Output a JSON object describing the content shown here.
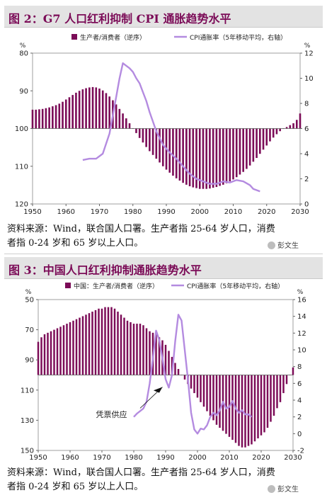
{
  "figures": [
    {
      "title": "图 2：G7 人口红利抑制 CPI 通胀趋势水平",
      "source_line1": "资料来源：Wind，联合国人口署。生产者指 25-64 岁人口，消费",
      "source_line2": "者指 0-24 岁和 65 岁以上人口。",
      "watermark": "彭文生"
    },
    {
      "title": "图 3：中国人口红利抑制通胀趋势水平",
      "source_line1": "资料来源：Wind，联合国人口署。生产者指 25-64 岁人口，消费",
      "source_line2": "者指 0-24 岁和 65 岁以上人口。",
      "watermark": "彭文生"
    }
  ],
  "colors": {
    "bar": "#7b0b57",
    "line": "#b48be0",
    "title": "#7b0b57"
  },
  "chart_data": [
    {
      "type": "bar",
      "left_axis_unit": "%",
      "right_axis_unit": "%",
      "legend": [
        "生产者/消费者（逆序）",
        "CPI通胀率（5年移动平均，右轴）"
      ],
      "xlim": [
        1950,
        2030
      ],
      "xticks": [
        1950,
        1960,
        1970,
        1980,
        1990,
        2000,
        2010,
        2020,
        2030
      ],
      "ylim_left": [
        80,
        120
      ],
      "yticks_left": [
        80,
        90,
        100,
        110,
        120
      ],
      "left_reversed": true,
      "baseline_left": 100,
      "ylim_right": [
        0,
        12
      ],
      "yticks_right": [
        0,
        2,
        4,
        6,
        8,
        10,
        12
      ],
      "bar_series": {
        "name": "生产者/消费者（逆序）",
        "x": [
          1950,
          1951,
          1952,
          1953,
          1954,
          1955,
          1956,
          1957,
          1958,
          1959,
          1960,
          1961,
          1962,
          1963,
          1964,
          1965,
          1966,
          1967,
          1968,
          1969,
          1970,
          1971,
          1972,
          1973,
          1974,
          1975,
          1976,
          1977,
          1978,
          1979,
          1980,
          1981,
          1982,
          1983,
          1984,
          1985,
          1986,
          1987,
          1988,
          1989,
          1990,
          1991,
          1992,
          1993,
          1994,
          1995,
          1996,
          1997,
          1998,
          1999,
          2000,
          2001,
          2002,
          2003,
          2004,
          2005,
          2006,
          2007,
          2008,
          2009,
          2010,
          2011,
          2012,
          2013,
          2014,
          2015,
          2016,
          2017,
          2018,
          2019,
          2020,
          2021,
          2022,
          2023,
          2024,
          2025,
          2026,
          2027,
          2028,
          2029,
          2030
        ],
        "values": [
          95.0,
          95.0,
          94.9,
          94.8,
          94.6,
          94.4,
          94.1,
          93.8,
          93.4,
          92.9,
          92.3,
          91.7,
          91.1,
          90.5,
          90.0,
          89.6,
          89.3,
          89.1,
          89.0,
          89.1,
          89.4,
          89.9,
          90.6,
          91.5,
          92.5,
          93.6,
          94.8,
          96.0,
          97.3,
          98.6,
          99.9,
          101.2,
          102.5,
          103.7,
          104.9,
          106.0,
          107.0,
          108.0,
          109.0,
          110.0,
          110.9,
          111.7,
          112.5,
          113.2,
          113.8,
          114.4,
          114.9,
          115.3,
          115.6,
          115.8,
          116.0,
          116.0,
          116.0,
          115.9,
          115.7,
          115.5,
          115.2,
          114.9,
          114.5,
          114.0,
          113.5,
          112.9,
          112.2,
          111.5,
          110.7,
          109.8,
          108.8,
          107.8,
          106.7,
          105.6,
          104.5,
          103.4,
          102.4,
          101.5,
          100.7,
          100.1,
          99.6,
          99.1,
          98.6,
          97.7,
          96.0
        ]
      },
      "line_series": {
        "name": "CPI通胀率（5年移动平均，右轴）",
        "x": [
          1965,
          1967,
          1969,
          1971,
          1973,
          1975,
          1976,
          1977,
          1978,
          1979,
          1980,
          1981,
          1982,
          1983,
          1984,
          1985,
          1987,
          1989,
          1991,
          1993,
          1995,
          1997,
          1999,
          2001,
          2003,
          2005,
          2007,
          2009,
          2011,
          2013,
          2015,
          2016,
          2017,
          2018
        ],
        "values": [
          3.5,
          3.6,
          3.6,
          4.0,
          5.6,
          8.5,
          10.0,
          11.2,
          11.0,
          10.8,
          10.5,
          10.0,
          9.6,
          8.9,
          8.2,
          7.3,
          5.8,
          4.7,
          4.1,
          3.6,
          3.0,
          2.4,
          2.0,
          1.8,
          1.6,
          1.6,
          1.8,
          1.7,
          1.9,
          1.8,
          1.5,
          1.2,
          1.1,
          1.0
        ]
      }
    },
    {
      "type": "bar",
      "left_axis_unit": "%",
      "right_axis_unit": "%",
      "legend": [
        "中国：生产者/消费者（逆序）",
        "CPI通胀率（5年移动平均，右轴）"
      ],
      "annotation": "凭票供应",
      "xlim": [
        1950,
        2030
      ],
      "xticks": [
        1950,
        1960,
        1970,
        1980,
        1990,
        2000,
        2010,
        2020,
        2030
      ],
      "ylim_left": [
        50,
        150
      ],
      "yticks_left": [
        50,
        70,
        90,
        110,
        130,
        150
      ],
      "left_reversed": true,
      "baseline_left": 100,
      "ylim_right": [
        -2,
        16
      ],
      "yticks_right": [
        -2,
        0,
        2,
        4,
        6,
        8,
        10,
        12,
        14,
        16
      ],
      "bar_series": {
        "name": "中国：生产者/消费者（逆序）",
        "x": [
          1950,
          1951,
          1952,
          1953,
          1954,
          1955,
          1956,
          1957,
          1958,
          1959,
          1960,
          1961,
          1962,
          1963,
          1964,
          1965,
          1966,
          1967,
          1968,
          1969,
          1970,
          1971,
          1972,
          1973,
          1974,
          1975,
          1976,
          1977,
          1978,
          1979,
          1980,
          1981,
          1982,
          1983,
          1984,
          1985,
          1986,
          1987,
          1988,
          1989,
          1990,
          1991,
          1992,
          1993,
          1994,
          1995,
          1996,
          1997,
          1998,
          1999,
          2000,
          2001,
          2002,
          2003,
          2004,
          2005,
          2006,
          2007,
          2008,
          2009,
          2010,
          2011,
          2012,
          2013,
          2014,
          2015,
          2016,
          2017,
          2018,
          2019,
          2020,
          2021,
          2022,
          2023,
          2024,
          2025,
          2026,
          2027,
          2028,
          2029,
          2030
        ],
        "values": [
          78,
          75,
          73,
          72,
          71,
          70,
          69,
          68,
          67,
          66,
          65,
          64,
          63,
          62,
          61,
          60,
          59,
          58,
          57,
          56,
          56,
          55,
          55,
          55,
          56,
          58,
          60,
          62,
          64,
          65,
          66,
          66,
          66,
          67,
          69,
          71,
          72,
          73,
          75,
          77,
          80,
          84,
          88,
          92,
          96,
          100,
          103,
          106,
          109,
          112,
          115,
          118,
          121,
          124,
          127,
          130,
          133,
          135,
          137,
          139,
          141,
          143,
          145,
          147,
          148,
          148,
          147,
          146,
          144,
          142,
          140,
          138,
          135,
          131,
          127,
          122,
          118,
          112,
          106,
          100,
          95
        ]
      },
      "line_series": {
        "name": "CPI通胀率（5年移动平均，右轴）",
        "x": [
          1980,
          1981,
          1982,
          1983,
          1984,
          1985,
          1986,
          1987,
          1988,
          1989,
          1990,
          1991,
          1992,
          1993,
          1994,
          1995,
          1996,
          1997,
          1998,
          1999,
          2000,
          2001,
          2002,
          2003,
          2004,
          2005,
          2006,
          2007,
          2008,
          2009,
          2010,
          2011,
          2012,
          2013,
          2014,
          2015,
          2016,
          2017
        ],
        "values": [
          2.0,
          2.4,
          2.7,
          3.0,
          3.8,
          6.0,
          9.0,
          12.3,
          11.2,
          9.0,
          6.5,
          5.5,
          7.0,
          11.0,
          14.2,
          13.5,
          10.0,
          6.5,
          2.5,
          0.5,
          0.0,
          0.6,
          0.5,
          1.0,
          2.0,
          2.5,
          2.2,
          2.8,
          3.8,
          3.0,
          3.2,
          3.9,
          3.0,
          2.5,
          2.8,
          2.3,
          2.3,
          2.0
        ]
      }
    }
  ]
}
